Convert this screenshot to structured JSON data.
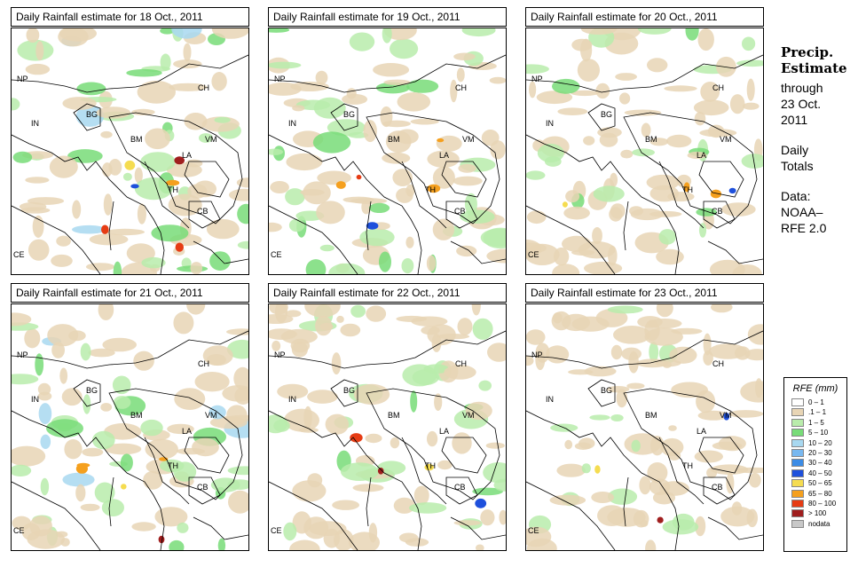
{
  "panels": [
    {
      "title": "Daily Rainfall estimate for  18 Oct., 2011",
      "rain": 0.62
    },
    {
      "title": "Daily Rainfall estimate for  19 Oct., 2011",
      "rain": 0.45
    },
    {
      "title": "Daily Rainfall estimate for  20 Oct., 2011",
      "rain": 0.4
    },
    {
      "title": "Daily Rainfall estimate for  21 Oct., 2011",
      "rain": 0.5
    },
    {
      "title": "Daily Rainfall estimate for  22 Oct., 2011",
      "rain": 0.35
    },
    {
      "title": "Daily Rainfall estimate for  23 Oct., 2011",
      "rain": 0.25
    }
  ],
  "map_labels": [
    "NP",
    "CH",
    "IN",
    "BG",
    "BM",
    "VM",
    "LA",
    "TH",
    "CB",
    "CE"
  ],
  "side": {
    "title_line1": "Precip.",
    "title_line2": "Estimate",
    "through": "through",
    "date_line1": "23 Oct.",
    "date_line2": "2011",
    "daily_line1": "Daily",
    "daily_line2": "Totals",
    "data_line1": "Data:",
    "data_line2": "NOAA–",
    "data_line3": "RFE 2.0"
  },
  "legend": {
    "title": "RFE (mm)",
    "items": [
      {
        "label": "0 – 1",
        "color": "#ffffff"
      },
      {
        "label": ".1 – 1",
        "color": "#e8d5b5"
      },
      {
        "label": "1 – 5",
        "color": "#b9ecab"
      },
      {
        "label": "5 – 10",
        "color": "#78dc78"
      },
      {
        "label": "10 – 20",
        "color": "#a8d8f0"
      },
      {
        "label": "20 – 30",
        "color": "#78b8f0"
      },
      {
        "label": "30 – 40",
        "color": "#3c8ce6"
      },
      {
        "label": "40 – 50",
        "color": "#1e50dc"
      },
      {
        "label": "50 – 65",
        "color": "#f5dc50"
      },
      {
        "label": "65 – 80",
        "color": "#f5a01e"
      },
      {
        "label": "80 – 100",
        "color": "#e63c14"
      },
      {
        "label": "> 100",
        "color": "#a01e1e"
      },
      {
        "label": "nodata",
        "color": "#c8c8c8"
      }
    ]
  }
}
